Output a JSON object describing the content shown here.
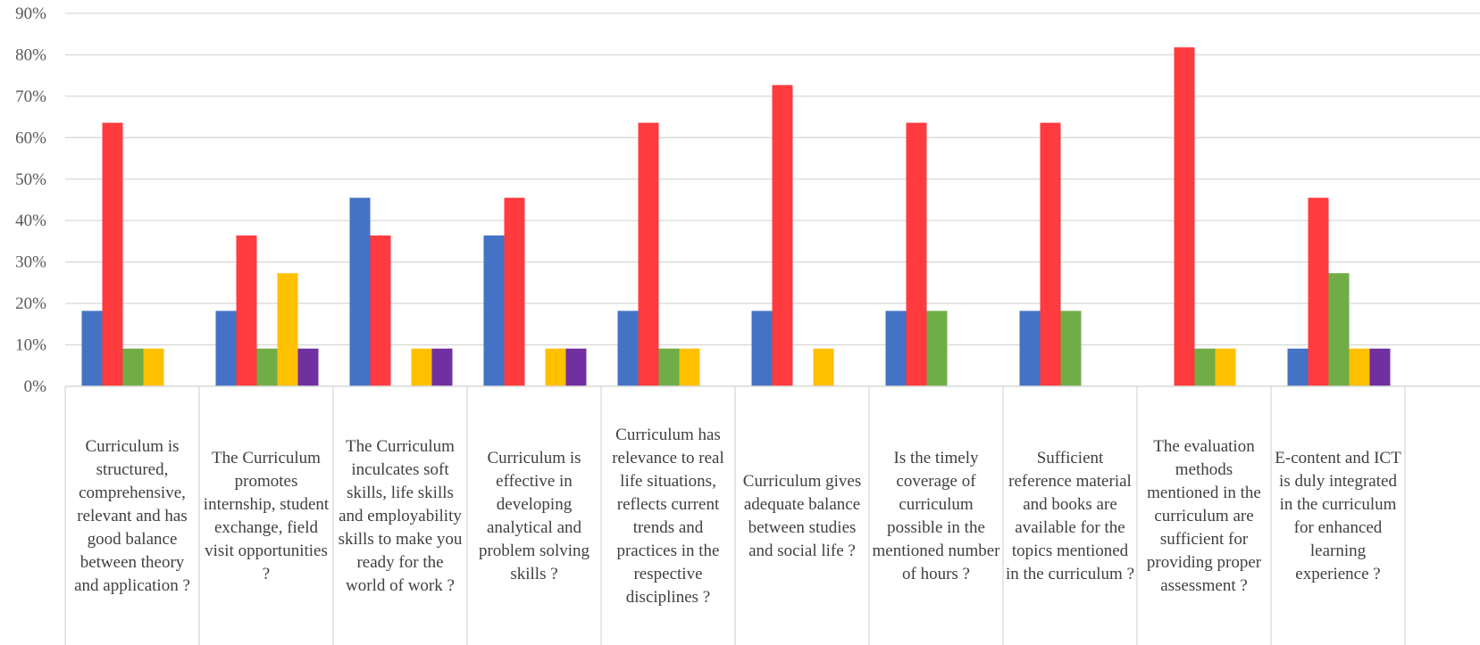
{
  "chart_data": {
    "type": "bar",
    "categories": [
      "Curriculum is structured, comprehensive, relevant and has good balance between theory and application ?",
      "The Curriculum promotes internship, student exchange, field visit opportunities ?",
      "The Curriculum inculcates soft skills, life skills and employability skills to make you ready for the world of work ?",
      "Curriculum is effective in developing analytical and problem solving skills ?",
      "Curriculum has relevance to real life situations, reflects current trends and practices in the respective disciplines ?",
      "Curriculum gives adequate balance between studies and social life ?",
      "Is the timely coverage of curriculum possible in the mentioned number of hours ?",
      "Sufficient reference material and books are available for the topics mentioned in the curriculum ?",
      "The evaluation methods mentioned in the curriculum are sufficient for providing proper assessment ?",
      "E-content and ICT is duly integrated in the curriculum for enhanced learning experience ?"
    ],
    "series": [
      {
        "color": "#4472C4",
        "values": [
          18.2,
          18.2,
          45.5,
          36.4,
          18.2,
          18.2,
          18.2,
          18.2,
          0,
          9.1
        ]
      },
      {
        "color": "#FF3B3F",
        "values": [
          63.6,
          36.4,
          36.4,
          45.5,
          63.6,
          72.7,
          63.6,
          63.6,
          81.8,
          45.5
        ]
      },
      {
        "color": "#70AD47",
        "values": [
          9.1,
          9.1,
          0,
          0,
          9.1,
          0,
          18.2,
          18.2,
          9.1,
          27.3
        ]
      },
      {
        "color": "#FFC000",
        "values": [
          9.1,
          27.3,
          9.1,
          9.1,
          9.1,
          9.1,
          0,
          0,
          9.1,
          9.1
        ]
      },
      {
        "color": "#7030A0",
        "values": [
          0,
          9.1,
          9.1,
          9.1,
          0,
          0,
          0,
          0,
          0,
          9.1
        ]
      }
    ],
    "ylim": [
      0,
      90
    ],
    "yticks": [
      "0%",
      "10%",
      "20%",
      "30%",
      "40%",
      "50%",
      "60%",
      "70%",
      "80%",
      "90%"
    ],
    "grid": true,
    "title": "",
    "xlabel": "",
    "ylabel": ""
  }
}
